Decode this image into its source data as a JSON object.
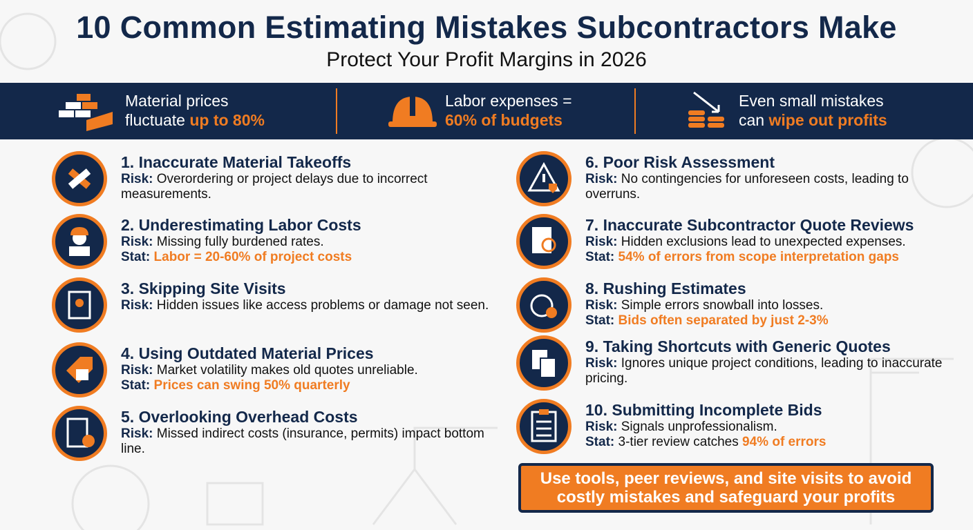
{
  "header": {
    "title": "10 Common Estimating Mistakes Subcontractors Make",
    "subtitle": "Protect Your Profit Margins in 2026"
  },
  "banner": [
    {
      "text": "Material prices fluctuate",
      "highlight": "up to 80%"
    },
    {
      "text": "Labor expenses =",
      "highlight": "60% of budgets"
    },
    {
      "text": "Even small mistakes can",
      "highlight": "wipe out profits"
    }
  ],
  "mistakes": [
    {
      "title": "1. Inaccurate Material Takeoffs",
      "risk_label": "Risk:",
      "risk": "Overordering or project delays due to incorrect measurements."
    },
    {
      "title": "2. Underestimating Labor Costs",
      "risk_label": "Risk:",
      "risk": "Missing fully burdened rates.",
      "stat_label": "Stat:",
      "stat_highlight": "Labor = 20-60% of project costs"
    },
    {
      "title": "3. Skipping Site Visits",
      "risk_label": "Risk:",
      "risk": "Hidden issues like access problems or damage not seen."
    },
    {
      "title": "4. Using Outdated Material Prices",
      "risk_label": "Risk:",
      "risk": "Market volatility makes old quotes unreliable.",
      "stat_label": "Stat:",
      "stat_highlight": "Prices can swing 50% quarterly"
    },
    {
      "title": "5. Overlooking Overhead Costs",
      "risk_label": "Risk:",
      "risk": "Missed indirect costs (insurance, permits) impact bottom line."
    },
    {
      "title": "6. Poor Risk Assessment",
      "risk_label": "Risk:",
      "risk": "No contingencies for unforeseen costs, leading to overruns."
    },
    {
      "title": "7. Inaccurate Subcontractor Quote Reviews",
      "risk_label": "Risk:",
      "risk": "Hidden exclusions lead to unexpected expenses.",
      "stat_label": "Stat:",
      "stat_highlight": "54% of errors from scope interpretation gaps"
    },
    {
      "title": "8. Rushing Estimates",
      "risk_label": "Risk:",
      "risk": "Simple errors snowball into losses.",
      "stat_label": "Stat:",
      "stat_highlight": "Bids often separated by just 2-3%"
    },
    {
      "title": "9. Taking Shortcuts with Generic Quotes",
      "risk_label": "Risk:",
      "risk": "Ignores unique project conditions, leading to inaccurate pricing."
    },
    {
      "title": "10. Submitting Incomplete Bids",
      "risk_label": "Risk:",
      "risk": "Signals unprofessionalism.",
      "stat_label": "Stat:",
      "stat": "3-tier review catches",
      "stat_highlight": "94% of errors"
    }
  ],
  "footer": {
    "text": "Use tools, peer reviews, and site visits to avoid costly mistakes and safeguard your profits"
  }
}
